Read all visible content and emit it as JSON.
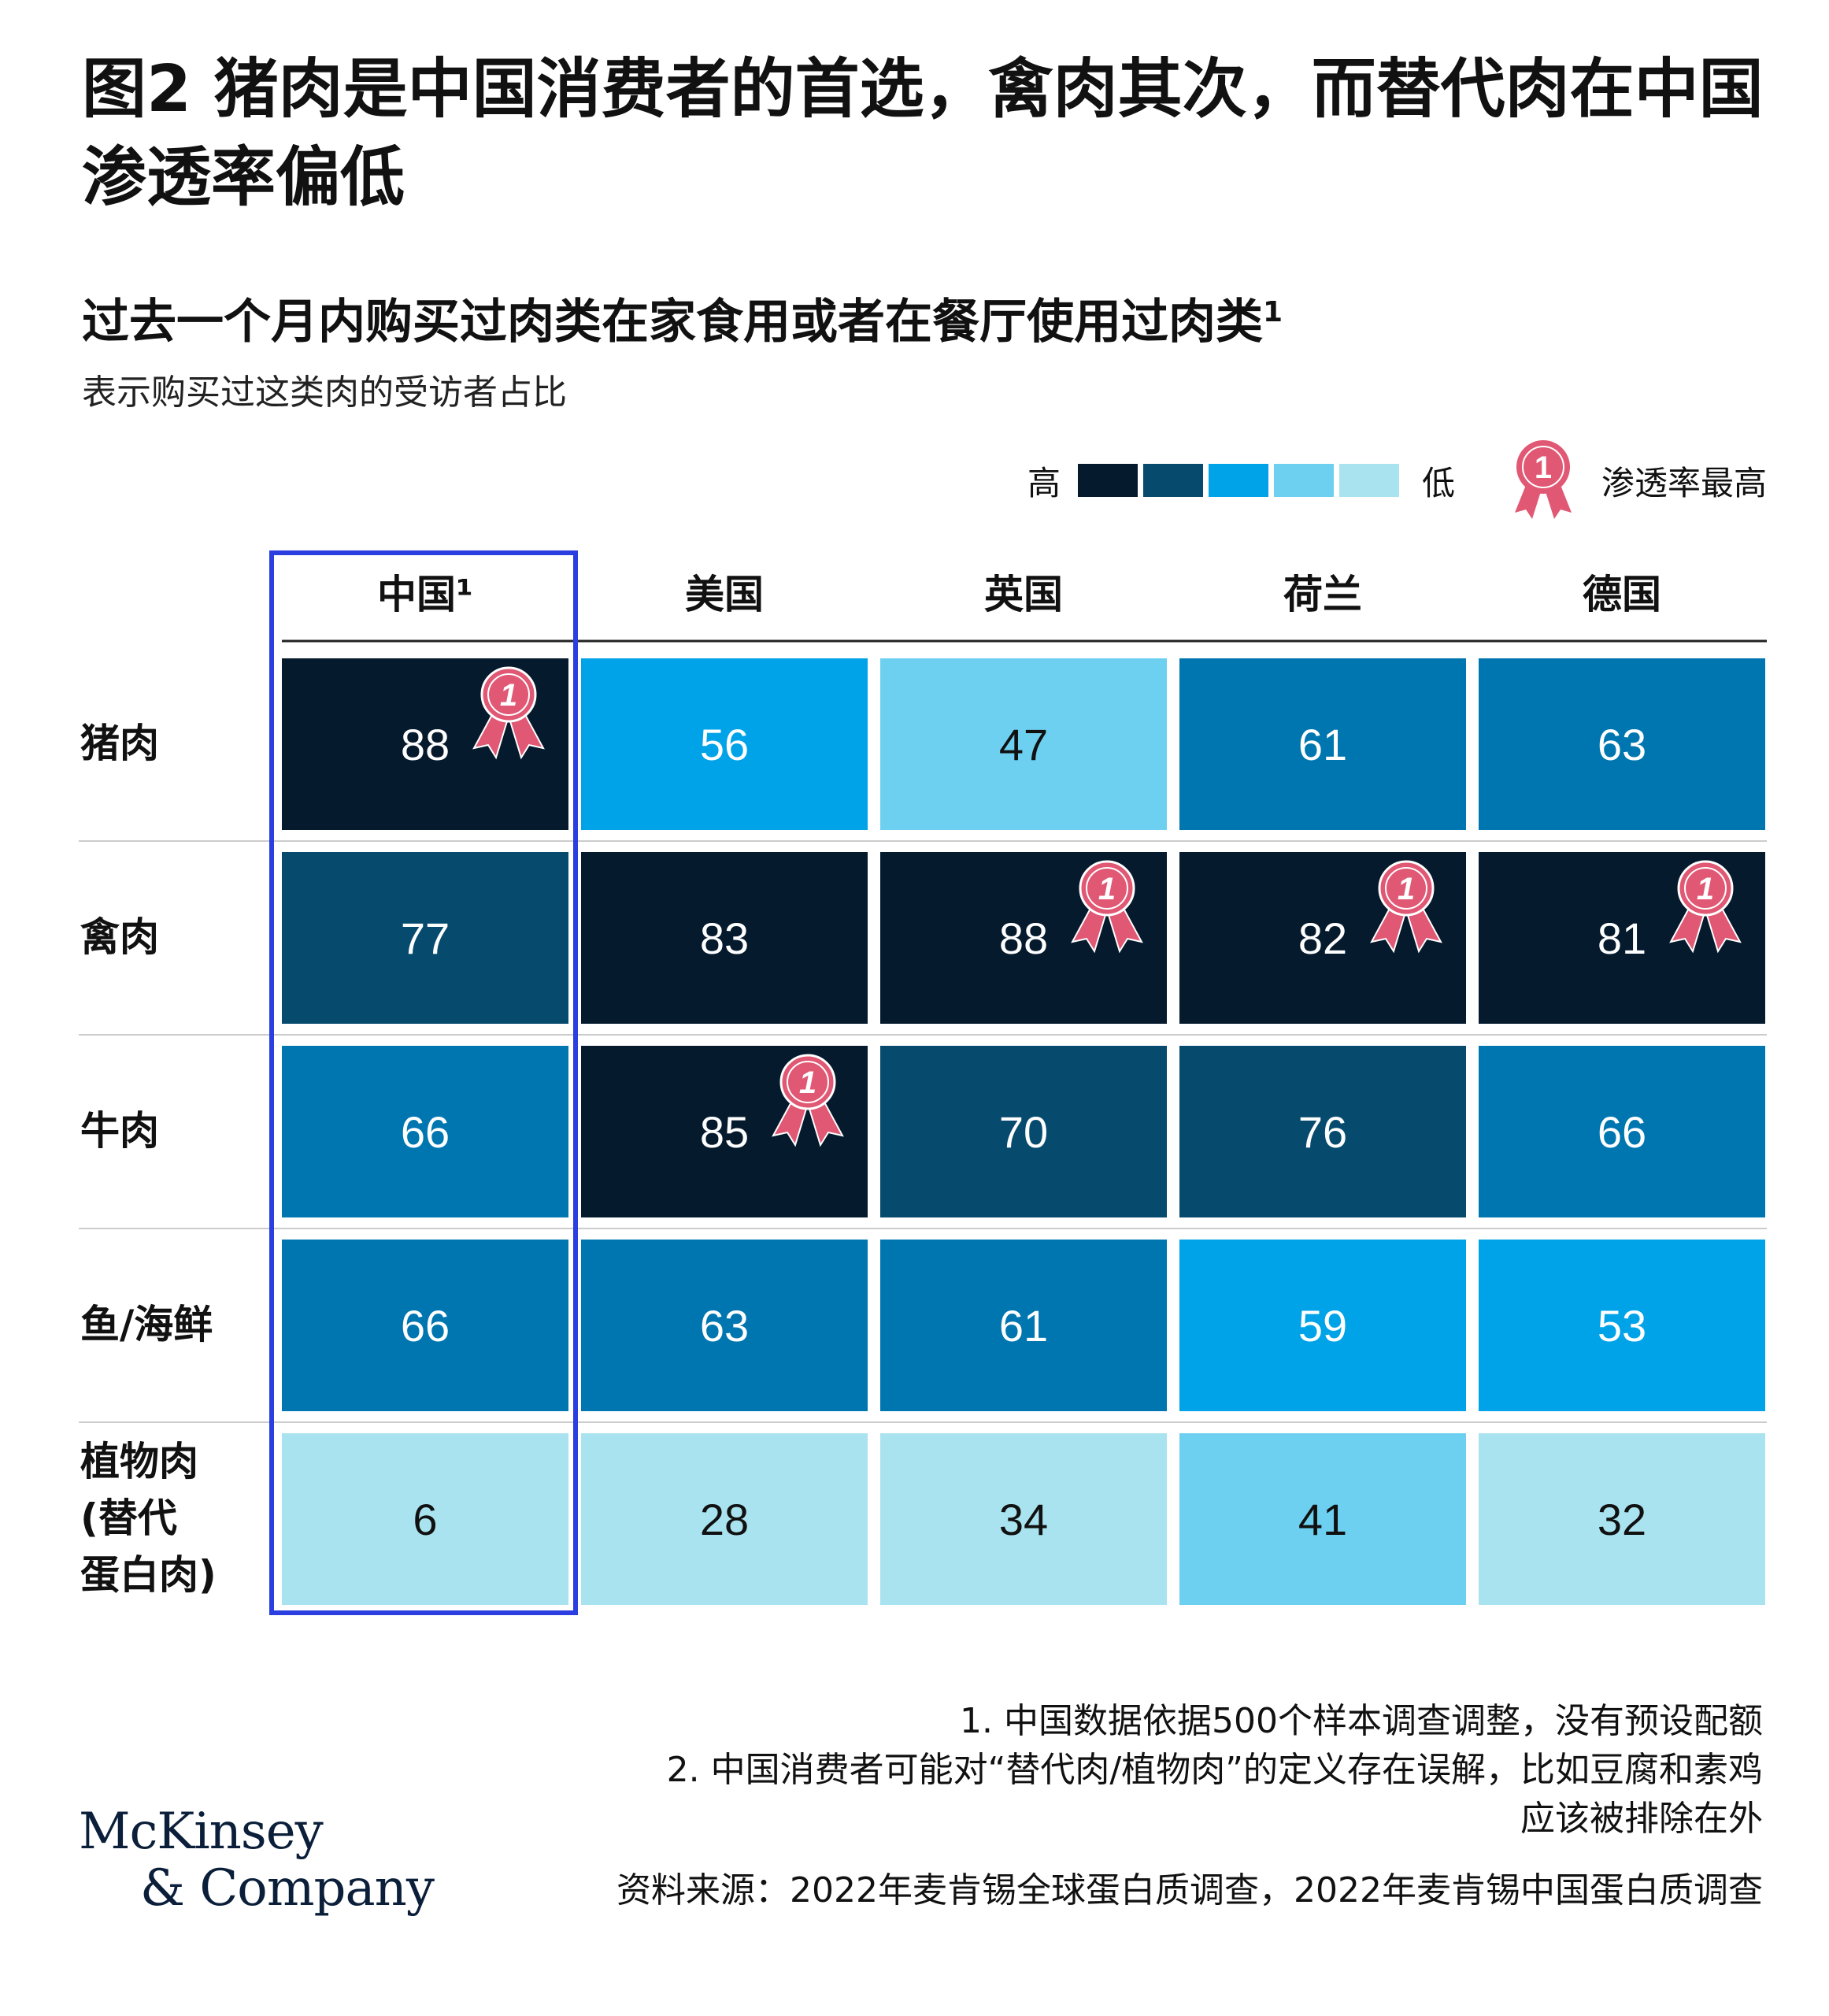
{
  "title": "图2  猪肉是中国消费者的首选，禽肉其次，而替代肉在中国渗透率偏低",
  "subtitle": "过去一个月内购买过肉类在家食用或者在餐厅使用过肉类",
  "subtitle_sup": "1",
  "description": "表示购买过这类肉的受访者占比",
  "legend": {
    "high": "高",
    "low": "低",
    "scale_colors": [
      "#061a2e",
      "#064a6e",
      "#00a3e8",
      "#6dd0f0",
      "#a9e3ef"
    ],
    "badge_text": "1",
    "badge_label": "渗透率最高",
    "badge_color": "#e05874",
    "badge_icon": "award-ribbon-icon"
  },
  "chart_data": {
    "type": "heatmap",
    "columns": [
      "中国¹",
      "美国",
      "英国",
      "荷兰",
      "德国"
    ],
    "rows": [
      "猪肉",
      "禽肉",
      "牛肉",
      "鱼/海鲜",
      "植物肉\n(替代\n蛋白肉)"
    ],
    "values": [
      [
        88,
        56,
        47,
        61,
        63
      ],
      [
        77,
        83,
        88,
        82,
        81
      ],
      [
        66,
        85,
        70,
        76,
        66
      ],
      [
        66,
        63,
        61,
        59,
        53
      ],
      [
        6,
        28,
        34,
        41,
        32
      ]
    ],
    "cell_colors": [
      [
        "#061a2e",
        "#00a3e8",
        "#6dd0f0",
        "#0076b0",
        "#0076b0"
      ],
      [
        "#064a6e",
        "#061a2e",
        "#061a2e",
        "#061a2e",
        "#061a2e"
      ],
      [
        "#0076b0",
        "#061a2e",
        "#064a6e",
        "#064a6e",
        "#0076b0"
      ],
      [
        "#0076b0",
        "#0076b0",
        "#0076b0",
        "#00a3e8",
        "#00a3e8"
      ],
      [
        "#a9e3ef",
        "#a9e3ef",
        "#a9e3ef",
        "#6dd0f0",
        "#a9e3ef"
      ]
    ],
    "highest_penetration": [
      [
        0,
        0
      ],
      [
        1,
        2
      ],
      [
        1,
        3
      ],
      [
        1,
        4
      ],
      [
        2,
        1
      ]
    ],
    "highlighted_column": "中国¹",
    "highlight_color": "#2b3ee0"
  },
  "footnotes": [
    "1. 中国数据依据500个样本调查调整，没有预设配额",
    "2. 中国消费者可能对“替代肉/植物肉”的定义存在误解，比如豆腐和素鸡",
    "应该被排除在外"
  ],
  "source": "资料来源：2022年麦肯锡全球蛋白质调查，2022年麦肯锡中国蛋白质调查",
  "logo": {
    "line1": "McKinsey",
    "line2": "& Company"
  }
}
